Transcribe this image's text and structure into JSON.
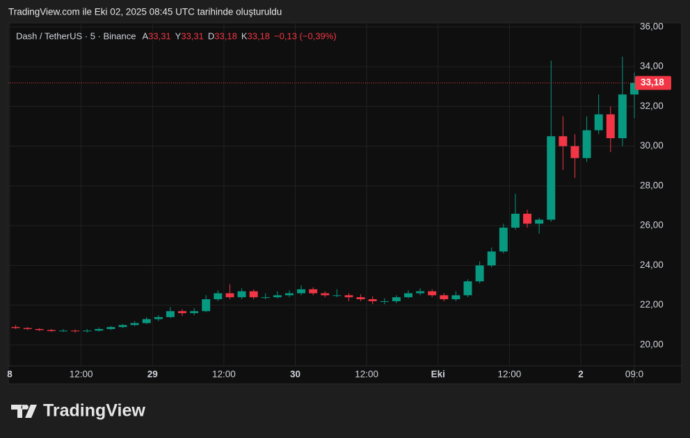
{
  "header": {
    "title": "TradingView.com ile Eki 02, 2025 08:45 UTC tarihinde oluşturuldu"
  },
  "logo": "TradingView",
  "chart_data": {
    "type": "candlestick",
    "symbol": "Dash / TetherUS · 5 · Binance",
    "ohlc_legend": [
      {
        "key": "A",
        "value": "33,31"
      },
      {
        "key": "Y",
        "value": "33,31"
      },
      {
        "key": "D",
        "value": "33,18"
      },
      {
        "key": "K",
        "value": "33,18"
      }
    ],
    "change": "−0,13 (−0,39%)",
    "up_color": "#089981",
    "down_color": "#f23645",
    "x": [
      0,
      2,
      4,
      6,
      8,
      10,
      12,
      14,
      16,
      18,
      20,
      22,
      24,
      26,
      28,
      30,
      32,
      34,
      36,
      38,
      40,
      42,
      44,
      46,
      48,
      50,
      52,
      54,
      56,
      58,
      60,
      62,
      64,
      66,
      68,
      70,
      72,
      74,
      76,
      78,
      80,
      82,
      84,
      86,
      88,
      90,
      92,
      94,
      96,
      98,
      100,
      102,
      104
    ],
    "open": [
      20.9,
      20.85,
      20.8,
      20.75,
      20.7,
      20.72,
      20.7,
      20.72,
      20.8,
      20.9,
      21.0,
      21.1,
      21.3,
      21.4,
      21.7,
      21.6,
      21.7,
      22.3,
      22.6,
      22.4,
      22.7,
      22.4,
      22.4,
      22.5,
      22.6,
      22.8,
      22.6,
      22.5,
      22.5,
      22.4,
      22.3,
      22.2,
      22.2,
      22.4,
      22.6,
      22.7,
      22.5,
      22.3,
      22.5,
      23.2,
      24.0,
      24.7,
      25.9,
      26.6,
      26.1,
      26.3,
      30.5,
      30.0,
      29.4,
      30.8,
      31.6,
      30.4,
      32.6
    ],
    "high": [
      21.0,
      20.9,
      20.85,
      20.8,
      20.8,
      20.78,
      20.8,
      20.88,
      20.95,
      21.05,
      21.2,
      21.4,
      21.5,
      21.9,
      21.8,
      21.85,
      22.5,
      22.75,
      23.05,
      22.85,
      22.8,
      22.6,
      22.7,
      22.75,
      23.0,
      22.9,
      22.7,
      22.8,
      22.6,
      22.55,
      22.45,
      22.35,
      22.5,
      22.75,
      22.85,
      22.8,
      22.6,
      22.7,
      23.3,
      24.2,
      24.9,
      26.1,
      27.6,
      26.8,
      26.4,
      34.3,
      31.5,
      30.6,
      31.5,
      32.6,
      32.0,
      34.5,
      33.7
    ],
    "low": [
      20.8,
      20.75,
      20.7,
      20.65,
      20.65,
      20.62,
      20.62,
      20.68,
      20.75,
      20.85,
      20.95,
      21.05,
      21.2,
      21.35,
      21.45,
      21.5,
      21.65,
      22.2,
      22.3,
      22.3,
      22.3,
      22.3,
      22.35,
      22.4,
      22.5,
      22.5,
      22.4,
      22.4,
      22.2,
      22.2,
      22.05,
      22.05,
      22.1,
      22.35,
      22.5,
      22.4,
      22.2,
      22.2,
      22.4,
      23.1,
      23.9,
      24.6,
      25.8,
      25.9,
      25.6,
      26.2,
      28.8,
      28.4,
      29.2,
      30.6,
      29.7,
      30.0,
      31.4
    ],
    "close": [
      20.85,
      20.8,
      20.75,
      20.7,
      20.72,
      20.7,
      20.72,
      20.8,
      20.9,
      21.0,
      21.1,
      21.3,
      21.4,
      21.7,
      21.6,
      21.7,
      22.3,
      22.6,
      22.4,
      22.7,
      22.4,
      22.4,
      22.5,
      22.6,
      22.8,
      22.6,
      22.5,
      22.5,
      22.4,
      22.3,
      22.2,
      22.2,
      22.4,
      22.6,
      22.7,
      22.5,
      22.3,
      22.5,
      23.2,
      24.0,
      24.7,
      25.9,
      26.6,
      26.1,
      26.3,
      30.5,
      30.0,
      29.4,
      30.8,
      31.6,
      30.4,
      32.6,
      33.18
    ],
    "last_price": {
      "value": 33.18,
      "label": "33,18"
    },
    "xlim": [
      0,
      105
    ],
    "xticks": [
      {
        "value": 0,
        "label": "8"
      },
      {
        "value": 12,
        "label": "12:00"
      },
      {
        "value": 24,
        "label": "29"
      },
      {
        "value": 36,
        "label": "12:00"
      },
      {
        "value": 48,
        "label": "30"
      },
      {
        "value": 60,
        "label": "12:00"
      },
      {
        "value": 72,
        "label": "Eki"
      },
      {
        "value": 84,
        "label": "12:00"
      },
      {
        "value": 96,
        "label": "2"
      },
      {
        "value": 105,
        "label": "09:0"
      }
    ],
    "ylim": [
      18.95,
      36.2
    ],
    "yticks": [
      {
        "value": 20,
        "label": "20,00"
      },
      {
        "value": 22,
        "label": "22,00"
      },
      {
        "value": 24,
        "label": "24,00"
      },
      {
        "value": 26,
        "label": "26,00"
      },
      {
        "value": 28,
        "label": "28,00"
      },
      {
        "value": 30,
        "label": "30,00"
      },
      {
        "value": 32,
        "label": "32,00"
      },
      {
        "value": 34,
        "label": "34,00"
      },
      {
        "value": 36,
        "label": "36,00"
      }
    ],
    "grid": true
  }
}
